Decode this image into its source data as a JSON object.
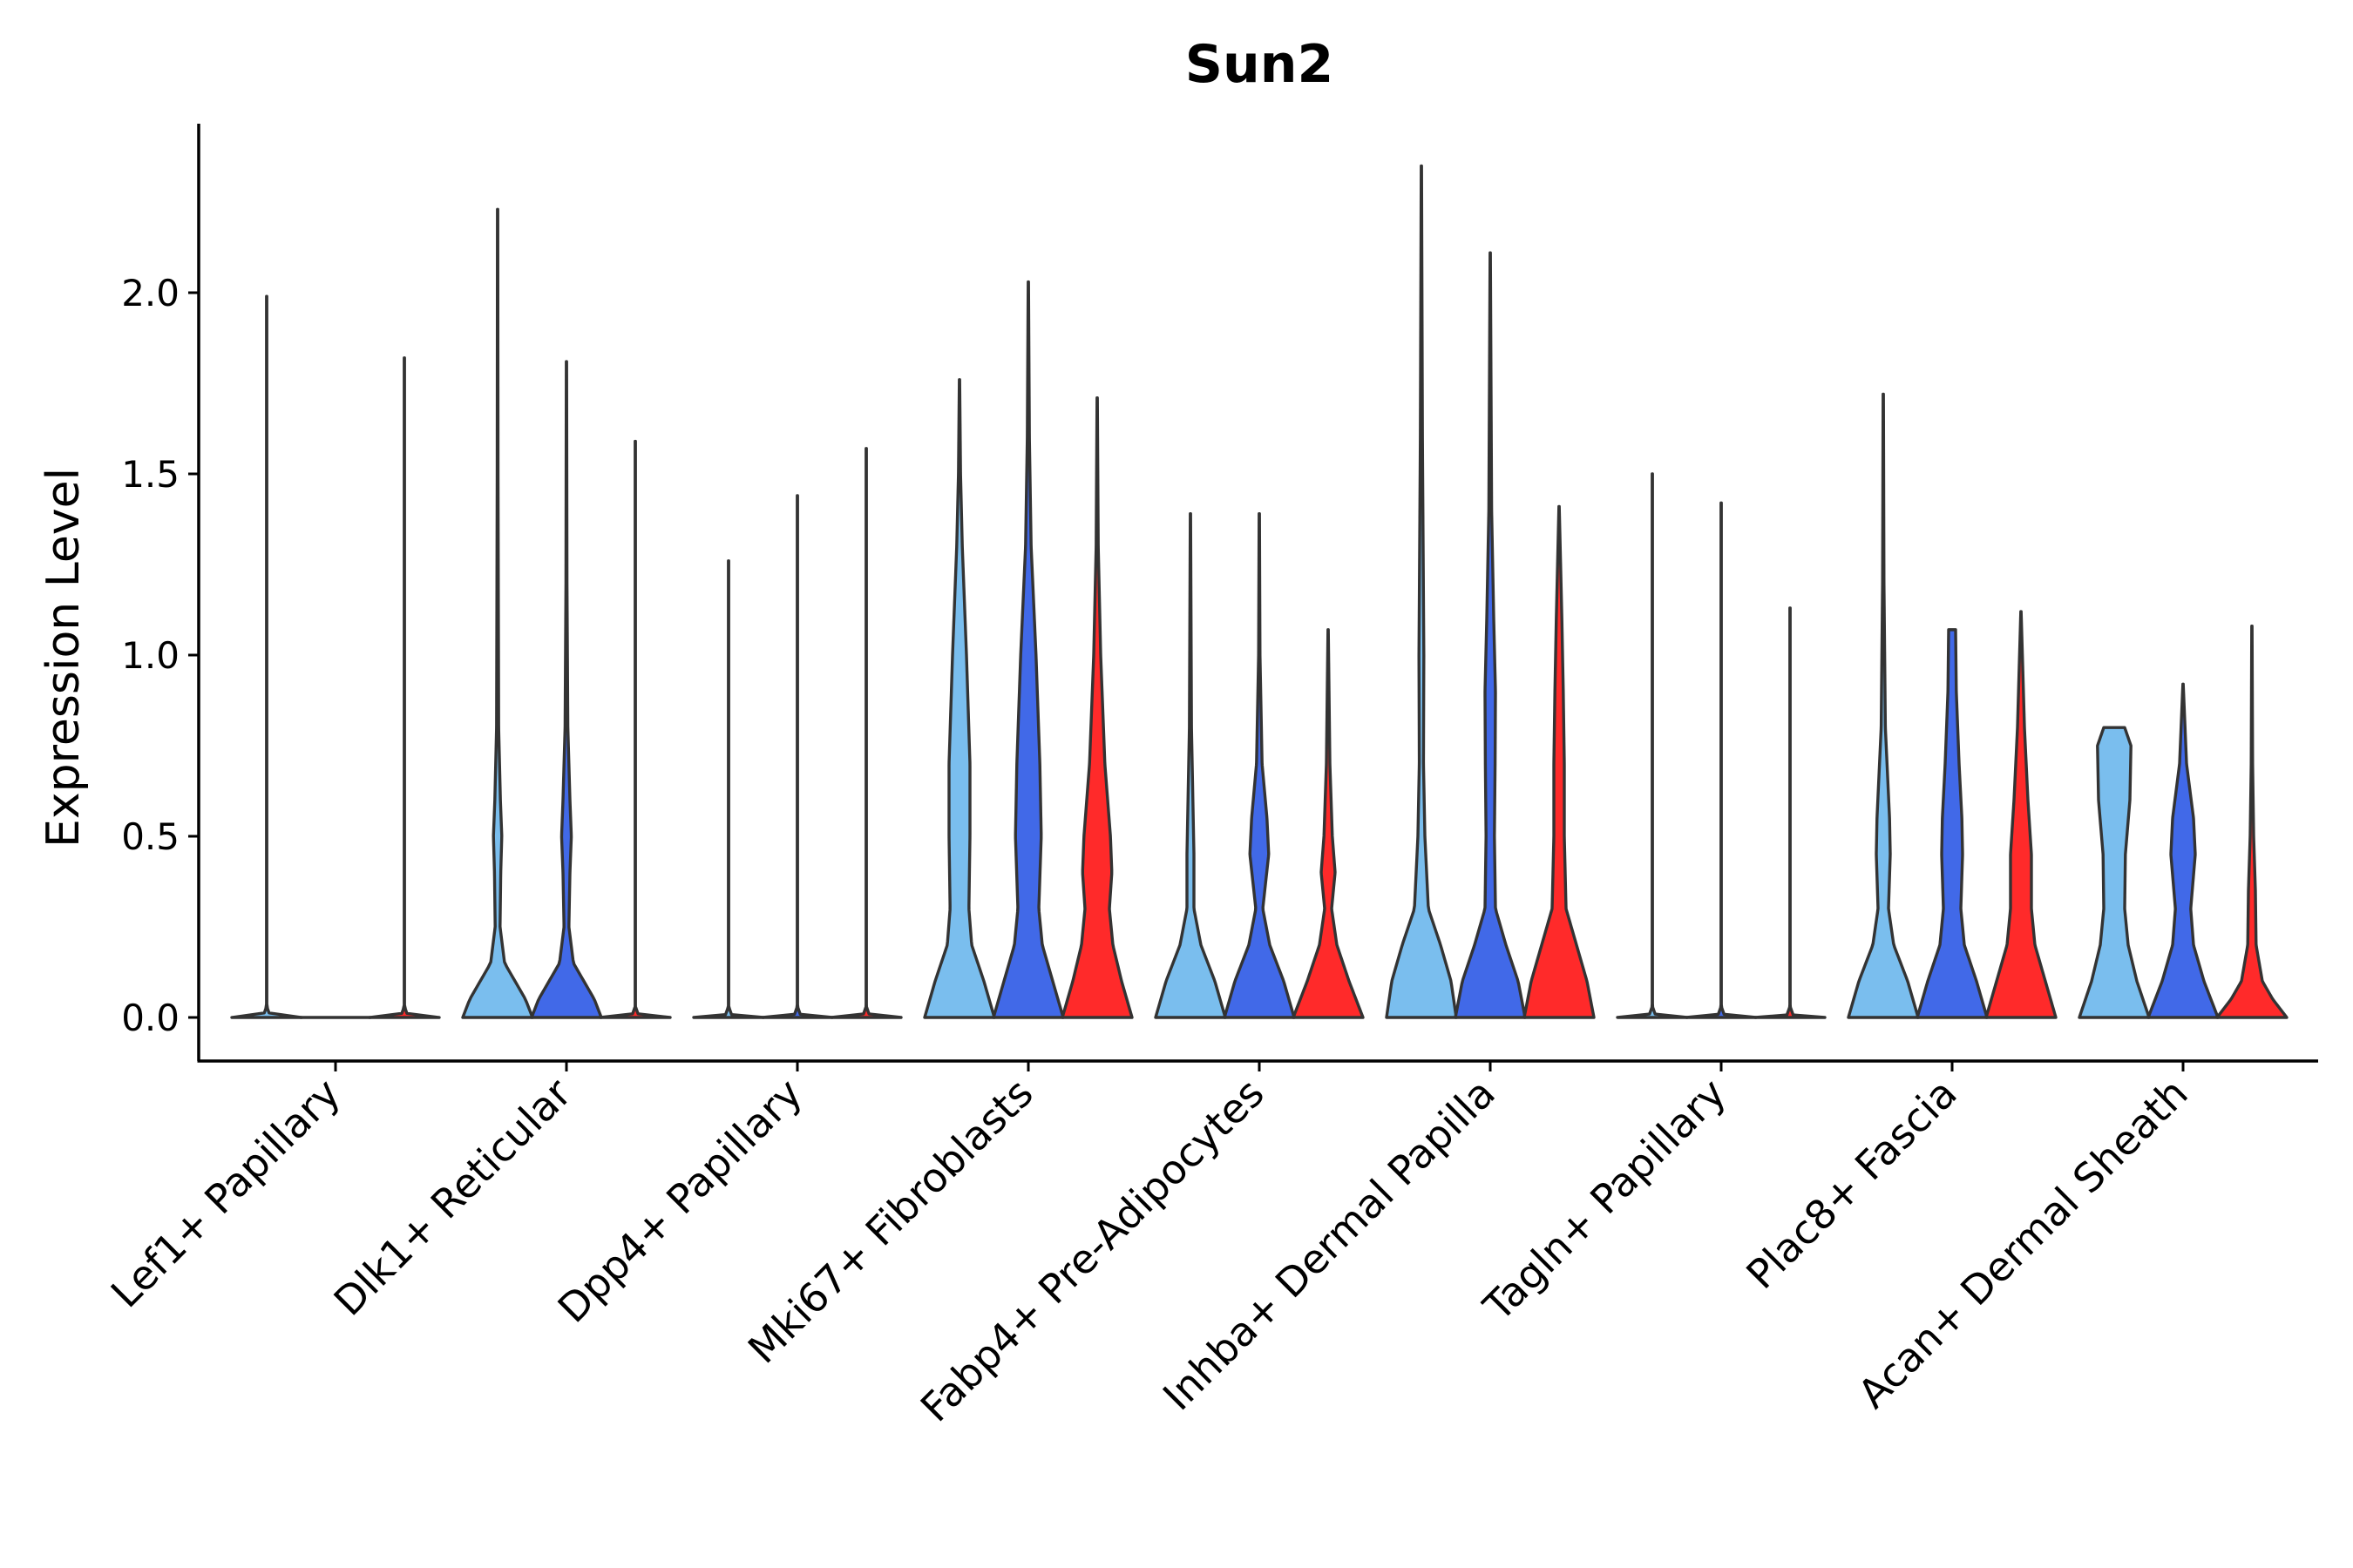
{
  "chart_data": {
    "type": "violin",
    "title": "Sun2",
    "xlabel": "",
    "ylabel": "Expression Level",
    "ylim": [
      -0.12,
      2.45
    ],
    "yticks": [
      "0.0",
      "0.5",
      "1.0",
      "1.5",
      "2.0"
    ],
    "ytick_values": [
      0.0,
      0.5,
      1.0,
      1.5,
      2.0
    ],
    "categories": [
      "Lef1+ Papillary",
      "Dlk1+ Reticular",
      "Dpp4+ Papillary",
      "Mki67+ Fibroblasts",
      "Fabp4+ Pre-Adipocytes",
      "Inhba+ Dermal Papilla",
      "Tagln+ Papillary",
      "Plac8+ Fascia",
      "Acan+ Dermal Sheath"
    ],
    "groups": [
      {
        "name": "group 1",
        "color": "#7ABEEE"
      },
      {
        "name": "group 2",
        "color": "#4169E8"
      },
      {
        "name": "group 3",
        "color": "#FF2A2A"
      }
    ],
    "violins": [
      [
        {
          "group": 0,
          "max": 1.99,
          "profile": [
            [
              0,
              1.0
            ],
            [
              0.004,
              0.1
            ],
            [
              0.03,
              0.005
            ],
            [
              1.99,
              0.005
            ]
          ]
        },
        {
          "group": 1,
          "max": 0.0,
          "profile": [
            [
              0,
              1.0
            ]
          ]
        },
        {
          "group": 2,
          "max": 1.82,
          "profile": [
            [
              0,
              1.0
            ],
            [
              0.004,
              0.1
            ],
            [
              0.03,
              0.005
            ],
            [
              1.82,
              0.005
            ]
          ]
        }
      ],
      [
        {
          "group": 0,
          "max": 2.23,
          "profile": [
            [
              0,
              1.0
            ],
            [
              0.05,
              0.8
            ],
            [
              0.1,
              0.5
            ],
            [
              0.15,
              0.2
            ],
            [
              0.25,
              0.07
            ],
            [
              0.4,
              0.09
            ],
            [
              0.5,
              0.12
            ],
            [
              0.6,
              0.08
            ],
            [
              0.8,
              0.03
            ],
            [
              1.5,
              0.012
            ],
            [
              2.23,
              0.005
            ]
          ]
        },
        {
          "group": 1,
          "max": 1.81,
          "profile": [
            [
              0,
              1.0
            ],
            [
              0.05,
              0.8
            ],
            [
              0.1,
              0.5
            ],
            [
              0.15,
              0.2
            ],
            [
              0.25,
              0.07
            ],
            [
              0.4,
              0.1
            ],
            [
              0.5,
              0.14
            ],
            [
              0.6,
              0.1
            ],
            [
              0.8,
              0.04
            ],
            [
              1.2,
              0.015
            ],
            [
              1.81,
              0.005
            ]
          ]
        },
        {
          "group": 2,
          "max": 1.59,
          "profile": [
            [
              0,
              1.0
            ],
            [
              0.004,
              0.1
            ],
            [
              0.03,
              0.005
            ],
            [
              1.59,
              0.005
            ]
          ]
        }
      ],
      [
        {
          "group": 0,
          "max": 1.26,
          "profile": [
            [
              0,
              1.0
            ],
            [
              0.004,
              0.1
            ],
            [
              0.03,
              0.005
            ],
            [
              1.26,
              0.005
            ]
          ]
        },
        {
          "group": 1,
          "max": 1.44,
          "profile": [
            [
              0,
              1.0
            ],
            [
              0.004,
              0.1
            ],
            [
              0.03,
              0.005
            ],
            [
              1.44,
              0.005
            ]
          ]
        },
        {
          "group": 2,
          "max": 1.57,
          "profile": [
            [
              0,
              1.0
            ],
            [
              0.004,
              0.1
            ],
            [
              0.03,
              0.005
            ],
            [
              1.57,
              0.005
            ]
          ]
        }
      ],
      [
        {
          "group": 0,
          "max": 1.76,
          "profile": [
            [
              0,
              1.0
            ],
            [
              0.1,
              0.7
            ],
            [
              0.2,
              0.35
            ],
            [
              0.3,
              0.27
            ],
            [
              0.5,
              0.3
            ],
            [
              0.7,
              0.3
            ],
            [
              1.0,
              0.2
            ],
            [
              1.3,
              0.08
            ],
            [
              1.5,
              0.03
            ],
            [
              1.76,
              0.005
            ]
          ]
        },
        {
          "group": 1,
          "max": 2.03,
          "profile": [
            [
              0,
              1.0
            ],
            [
              0.1,
              0.7
            ],
            [
              0.2,
              0.4
            ],
            [
              0.3,
              0.3
            ],
            [
              0.5,
              0.37
            ],
            [
              0.7,
              0.33
            ],
            [
              1.0,
              0.22
            ],
            [
              1.3,
              0.08
            ],
            [
              1.6,
              0.03
            ],
            [
              2.03,
              0.005
            ]
          ]
        },
        {
          "group": 2,
          "max": 1.71,
          "profile": [
            [
              0,
              1.0
            ],
            [
              0.1,
              0.7
            ],
            [
              0.2,
              0.45
            ],
            [
              0.3,
              0.35
            ],
            [
              0.4,
              0.42
            ],
            [
              0.5,
              0.38
            ],
            [
              0.7,
              0.22
            ],
            [
              1.0,
              0.1
            ],
            [
              1.3,
              0.03
            ],
            [
              1.71,
              0.005
            ]
          ]
        }
      ],
      [
        {
          "group": 0,
          "max": 1.39,
          "profile": [
            [
              0,
              1.0
            ],
            [
              0.1,
              0.7
            ],
            [
              0.2,
              0.3
            ],
            [
              0.3,
              0.1
            ],
            [
              0.45,
              0.1
            ],
            [
              0.6,
              0.07
            ],
            [
              0.8,
              0.03
            ],
            [
              1.39,
              0.005
            ]
          ]
        },
        {
          "group": 1,
          "max": 1.39,
          "profile": [
            [
              0,
              1.0
            ],
            [
              0.1,
              0.7
            ],
            [
              0.2,
              0.3
            ],
            [
              0.3,
              0.1
            ],
            [
              0.45,
              0.27
            ],
            [
              0.55,
              0.22
            ],
            [
              0.7,
              0.08
            ],
            [
              1.0,
              0.02
            ],
            [
              1.39,
              0.005
            ]
          ]
        },
        {
          "group": 2,
          "max": 1.07,
          "profile": [
            [
              0,
              1.0
            ],
            [
              0.1,
              0.6
            ],
            [
              0.2,
              0.25
            ],
            [
              0.3,
              0.1
            ],
            [
              0.4,
              0.2
            ],
            [
              0.5,
              0.12
            ],
            [
              0.7,
              0.05
            ],
            [
              1.07,
              0.005
            ]
          ]
        }
      ],
      [
        {
          "group": 0,
          "max": 2.35,
          "profile": [
            [
              0,
              1.0
            ],
            [
              0.1,
              0.85
            ],
            [
              0.2,
              0.55
            ],
            [
              0.3,
              0.2
            ],
            [
              0.5,
              0.1
            ],
            [
              0.7,
              0.06
            ],
            [
              1.0,
              0.07
            ],
            [
              1.3,
              0.05
            ],
            [
              1.6,
              0.03
            ],
            [
              2.35,
              0.005
            ]
          ]
        },
        {
          "group": 1,
          "max": 2.11,
          "profile": [
            [
              0,
              1.0
            ],
            [
              0.1,
              0.8
            ],
            [
              0.2,
              0.45
            ],
            [
              0.3,
              0.15
            ],
            [
              0.5,
              0.12
            ],
            [
              0.7,
              0.14
            ],
            [
              0.9,
              0.15
            ],
            [
              1.1,
              0.1
            ],
            [
              1.4,
              0.04
            ],
            [
              2.11,
              0.005
            ]
          ]
        },
        {
          "group": 2,
          "max": 1.41,
          "profile": [
            [
              0,
              1.0
            ],
            [
              0.1,
              0.8
            ],
            [
              0.2,
              0.5
            ],
            [
              0.3,
              0.2
            ],
            [
              0.5,
              0.15
            ],
            [
              0.7,
              0.15
            ],
            [
              0.9,
              0.12
            ],
            [
              1.1,
              0.08
            ],
            [
              1.41,
              0.005
            ]
          ]
        }
      ],
      [
        {
          "group": 0,
          "max": 1.5,
          "profile": [
            [
              0,
              1.0
            ],
            [
              0.004,
              0.1
            ],
            [
              0.03,
              0.005
            ],
            [
              1.5,
              0.005
            ]
          ]
        },
        {
          "group": 1,
          "max": 1.42,
          "profile": [
            [
              0,
              1.0
            ],
            [
              0.004,
              0.1
            ],
            [
              0.03,
              0.005
            ],
            [
              1.42,
              0.005
            ]
          ]
        },
        {
          "group": 2,
          "max": 1.13,
          "profile": [
            [
              0,
              1.0
            ],
            [
              0.004,
              0.1
            ],
            [
              0.03,
              0.005
            ],
            [
              1.13,
              0.005
            ]
          ]
        }
      ],
      [
        {
          "group": 0,
          "max": 1.72,
          "profile": [
            [
              0,
              1.0
            ],
            [
              0.1,
              0.7
            ],
            [
              0.2,
              0.3
            ],
            [
              0.3,
              0.15
            ],
            [
              0.45,
              0.2
            ],
            [
              0.55,
              0.18
            ],
            [
              0.8,
              0.06
            ],
            [
              1.2,
              0.02
            ],
            [
              1.72,
              0.005
            ]
          ]
        },
        {
          "group": 1,
          "max": 1.07,
          "profile": [
            [
              0,
              1.0
            ],
            [
              0.1,
              0.7
            ],
            [
              0.2,
              0.35
            ],
            [
              0.3,
              0.25
            ],
            [
              0.45,
              0.3
            ],
            [
              0.55,
              0.28
            ],
            [
              0.7,
              0.2
            ],
            [
              0.9,
              0.12
            ],
            [
              1.07,
              0.1
            ]
          ]
        },
        {
          "group": 2,
          "max": 1.12,
          "profile": [
            [
              0,
              1.0
            ],
            [
              0.1,
              0.7
            ],
            [
              0.2,
              0.4
            ],
            [
              0.3,
              0.3
            ],
            [
              0.45,
              0.3
            ],
            [
              0.6,
              0.2
            ],
            [
              0.8,
              0.1
            ],
            [
              1.12,
              0.005
            ]
          ]
        }
      ],
      [
        {
          "group": 0,
          "max": 0.8,
          "profile": [
            [
              0,
              1.0
            ],
            [
              0.1,
              0.65
            ],
            [
              0.2,
              0.4
            ],
            [
              0.3,
              0.3
            ],
            [
              0.45,
              0.32
            ],
            [
              0.6,
              0.45
            ],
            [
              0.75,
              0.48
            ],
            [
              0.8,
              0.3
            ]
          ]
        },
        {
          "group": 1,
          "max": 0.92,
          "profile": [
            [
              0,
              1.0
            ],
            [
              0.1,
              0.6
            ],
            [
              0.2,
              0.3
            ],
            [
              0.3,
              0.22
            ],
            [
              0.45,
              0.35
            ],
            [
              0.55,
              0.3
            ],
            [
              0.7,
              0.1
            ],
            [
              0.92,
              0.005
            ]
          ]
        },
        {
          "group": 2,
          "max": 1.08,
          "profile": [
            [
              0,
              1.0
            ],
            [
              0.05,
              0.6
            ],
            [
              0.1,
              0.3
            ],
            [
              0.2,
              0.12
            ],
            [
              0.35,
              0.1
            ],
            [
              0.5,
              0.05
            ],
            [
              0.7,
              0.02
            ],
            [
              1.08,
              0.005
            ]
          ]
        }
      ]
    ]
  }
}
